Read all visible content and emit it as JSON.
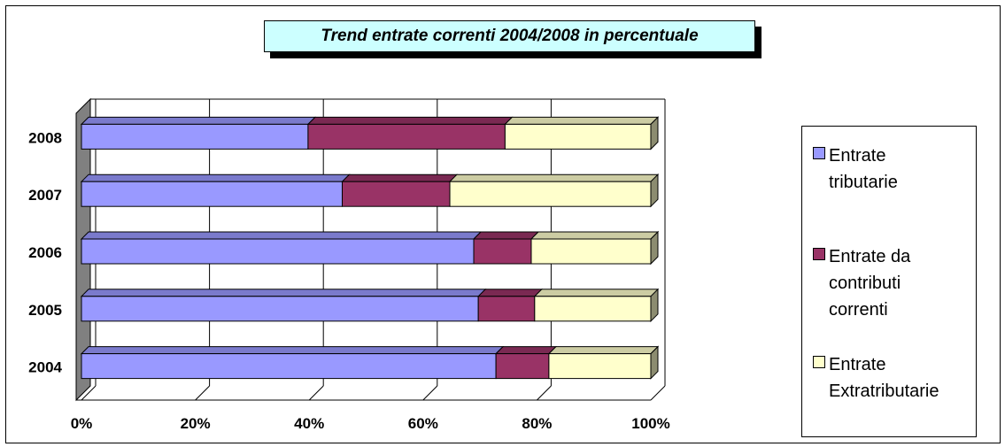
{
  "chart_data": {
    "type": "bar",
    "orientation": "horizontal",
    "stacked": "percent",
    "style": "3d",
    "title": "Trend entrate correnti 2004/2008 in percentuale",
    "categories": [
      "2004",
      "2005",
      "2006",
      "2007",
      "2008"
    ],
    "series": [
      {
        "name": "Entrate tributarie",
        "legend_label": "Entrate\ntributarie",
        "color": "#9999ff",
        "values": [
          72.8,
          69.7,
          68.9,
          45.8,
          39.8
        ]
      },
      {
        "name": "Entrate da contributi correnti",
        "legend_label": "Entrate da\ncontributi\ncorrenti",
        "color": "#993366",
        "values": [
          9.3,
          9.9,
          10.1,
          18.9,
          34.6
        ]
      },
      {
        "name": "Entrate Extratributarie",
        "legend_label": "Entrate\nExtratributarie",
        "color": "#ffffcc",
        "values": [
          17.9,
          20.4,
          21.0,
          35.3,
          25.6
        ]
      }
    ],
    "xlim": [
      0,
      100
    ],
    "x_ticks": [
      "0%",
      "20%",
      "40%",
      "60%",
      "80%",
      "100%"
    ],
    "grid": true,
    "legend_position": "right"
  }
}
